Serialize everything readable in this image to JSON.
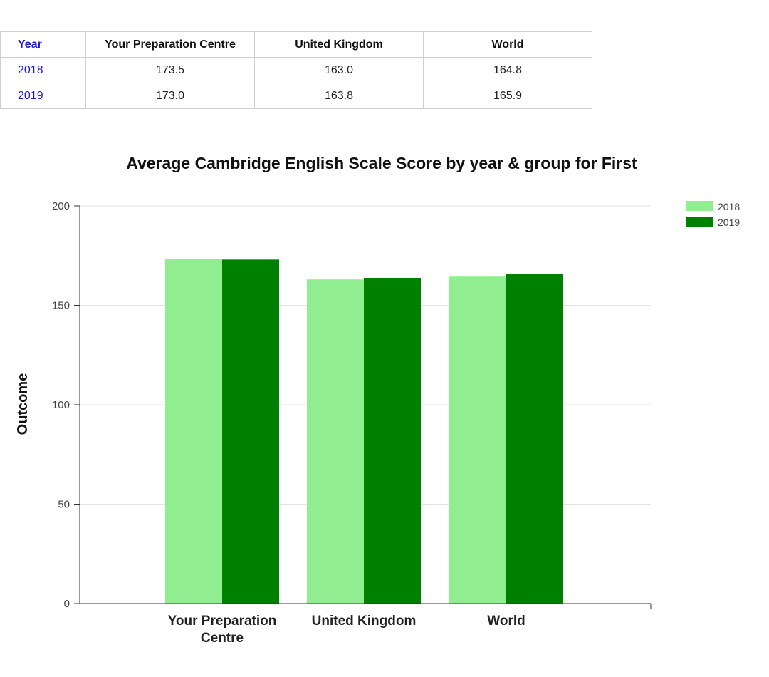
{
  "table": {
    "headers": [
      "Year",
      "Your Preparation Centre",
      "United Kingdom",
      "World"
    ],
    "rows": [
      [
        "2018",
        "173.5",
        "163.0",
        "164.8"
      ],
      [
        "2019",
        "173.0",
        "163.8",
        "165.9"
      ]
    ]
  },
  "chart_data": {
    "type": "bar",
    "title": "Average Cambridge English Scale Score by year & group for First",
    "ylabel": "Outcome",
    "xlabel": "",
    "categories": [
      "Your Preparation Centre",
      "United Kingdom",
      "World"
    ],
    "series": [
      {
        "name": "2018",
        "values": [
          173.5,
          163.0,
          164.8
        ],
        "color": "#90ee90"
      },
      {
        "name": "2019",
        "values": [
          173.0,
          163.8,
          165.9
        ],
        "color": "#008000"
      }
    ],
    "ylim": [
      0,
      200
    ],
    "yticks": [
      0,
      50,
      100,
      150,
      200
    ],
    "grid": true,
    "legend_position": "top-right"
  }
}
